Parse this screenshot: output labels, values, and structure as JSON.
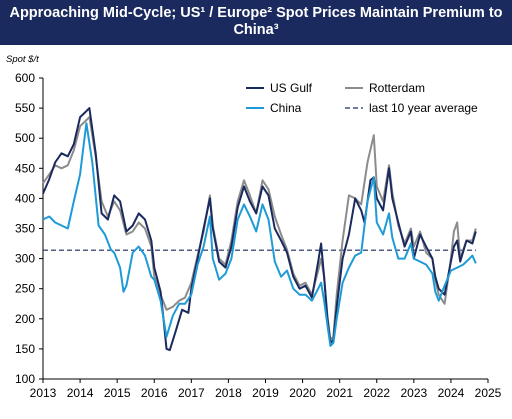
{
  "title_line1": "Approaching Mid-Cycle; US¹ / Europe² Spot Prices Maintain Premium to",
  "title_line2": "China³",
  "chart_data": {
    "type": "line",
    "title": "Approaching Mid-Cycle; US¹ / Europe² Spot Prices Maintain Premium to China³",
    "ylabel": "Spot $/t",
    "xlabel": "",
    "ylim": [
      100,
      600
    ],
    "xlim": [
      2013,
      2025
    ],
    "y_ticks": [
      100,
      150,
      200,
      250,
      300,
      350,
      400,
      450,
      500,
      550,
      600
    ],
    "x_ticks": [
      2013,
      2014,
      2015,
      2016,
      2017,
      2018,
      2019,
      2020,
      2021,
      2022,
      2023,
      2024,
      2025
    ],
    "grid": false,
    "legend": "top-right",
    "reference_line": {
      "name": "last 10 year average",
      "value": 314,
      "style": "dashed",
      "color": "#1b2a5e"
    },
    "series": [
      {
        "name": "US Gulf",
        "color": "#1b2a5e",
        "points": [
          [
            2013.0,
            408
          ],
          [
            2013.17,
            432
          ],
          [
            2013.33,
            460
          ],
          [
            2013.5,
            475
          ],
          [
            2013.67,
            470
          ],
          [
            2013.83,
            490
          ],
          [
            2014.0,
            535
          ],
          [
            2014.17,
            545
          ],
          [
            2014.25,
            550
          ],
          [
            2014.42,
            475
          ],
          [
            2014.58,
            375
          ],
          [
            2014.75,
            365
          ],
          [
            2014.92,
            405
          ],
          [
            2015.08,
            395
          ],
          [
            2015.25,
            345
          ],
          [
            2015.42,
            355
          ],
          [
            2015.58,
            375
          ],
          [
            2015.75,
            365
          ],
          [
            2015.92,
            330
          ],
          [
            2016.0,
            285
          ],
          [
            2016.17,
            245
          ],
          [
            2016.25,
            200
          ],
          [
            2016.33,
            150
          ],
          [
            2016.42,
            148
          ],
          [
            2016.58,
            180
          ],
          [
            2016.75,
            215
          ],
          [
            2016.92,
            210
          ],
          [
            2017.0,
            250
          ],
          [
            2017.17,
            300
          ],
          [
            2017.33,
            350
          ],
          [
            2017.5,
            400
          ],
          [
            2017.58,
            350
          ],
          [
            2017.75,
            295
          ],
          [
            2017.92,
            285
          ],
          [
            2018.08,
            320
          ],
          [
            2018.25,
            385
          ],
          [
            2018.42,
            420
          ],
          [
            2018.58,
            395
          ],
          [
            2018.75,
            375
          ],
          [
            2018.92,
            420
          ],
          [
            2019.08,
            405
          ],
          [
            2019.25,
            350
          ],
          [
            2019.42,
            330
          ],
          [
            2019.58,
            310
          ],
          [
            2019.75,
            270
          ],
          [
            2019.92,
            250
          ],
          [
            2020.08,
            255
          ],
          [
            2020.25,
            235
          ],
          [
            2020.42,
            295
          ],
          [
            2020.5,
            325
          ],
          [
            2020.58,
            270
          ],
          [
            2020.67,
            200
          ],
          [
            2020.75,
            160
          ],
          [
            2020.83,
            165
          ],
          [
            2020.92,
            220
          ],
          [
            2021.08,
            300
          ],
          [
            2021.25,
            340
          ],
          [
            2021.42,
            400
          ],
          [
            2021.58,
            380
          ],
          [
            2021.67,
            360
          ],
          [
            2021.75,
            395
          ],
          [
            2021.83,
            430
          ],
          [
            2021.92,
            435
          ],
          [
            2022.0,
            400
          ],
          [
            2022.17,
            380
          ],
          [
            2022.33,
            450
          ],
          [
            2022.42,
            400
          ],
          [
            2022.58,
            360
          ],
          [
            2022.75,
            320
          ],
          [
            2022.92,
            345
          ],
          [
            2023.0,
            300
          ],
          [
            2023.17,
            340
          ],
          [
            2023.33,
            320
          ],
          [
            2023.5,
            300
          ],
          [
            2023.58,
            270
          ],
          [
            2023.67,
            250
          ],
          [
            2023.83,
            240
          ],
          [
            2024.0,
            295
          ],
          [
            2024.08,
            320
          ],
          [
            2024.17,
            330
          ],
          [
            2024.25,
            295
          ],
          [
            2024.42,
            330
          ],
          [
            2024.58,
            325
          ],
          [
            2024.67,
            345
          ]
        ]
      },
      {
        "name": "Rotterdam",
        "color": "#8c8c8c",
        "points": [
          [
            2013.0,
            425
          ],
          [
            2013.17,
            440
          ],
          [
            2013.33,
            455
          ],
          [
            2013.5,
            450
          ],
          [
            2013.67,
            455
          ],
          [
            2013.83,
            480
          ],
          [
            2014.0,
            520
          ],
          [
            2014.17,
            530
          ],
          [
            2014.25,
            535
          ],
          [
            2014.42,
            470
          ],
          [
            2014.58,
            395
          ],
          [
            2014.75,
            370
          ],
          [
            2014.92,
            395
          ],
          [
            2015.08,
            380
          ],
          [
            2015.25,
            340
          ],
          [
            2015.42,
            345
          ],
          [
            2015.58,
            360
          ],
          [
            2015.75,
            350
          ],
          [
            2015.92,
            320
          ],
          [
            2016.0,
            270
          ],
          [
            2016.17,
            240
          ],
          [
            2016.33,
            215
          ],
          [
            2016.5,
            220
          ],
          [
            2016.67,
            230
          ],
          [
            2016.83,
            235
          ],
          [
            2017.0,
            260
          ],
          [
            2017.17,
            305
          ],
          [
            2017.33,
            345
          ],
          [
            2017.5,
            405
          ],
          [
            2017.58,
            355
          ],
          [
            2017.75,
            300
          ],
          [
            2017.92,
            290
          ],
          [
            2018.08,
            330
          ],
          [
            2018.25,
            395
          ],
          [
            2018.42,
            430
          ],
          [
            2018.58,
            405
          ],
          [
            2018.75,
            375
          ],
          [
            2018.92,
            430
          ],
          [
            2019.08,
            415
          ],
          [
            2019.25,
            370
          ],
          [
            2019.42,
            340
          ],
          [
            2019.58,
            315
          ],
          [
            2019.75,
            275
          ],
          [
            2019.92,
            255
          ],
          [
            2020.08,
            260
          ],
          [
            2020.25,
            240
          ],
          [
            2020.42,
            280
          ],
          [
            2020.5,
            300
          ],
          [
            2020.58,
            270
          ],
          [
            2020.67,
            205
          ],
          [
            2020.75,
            165
          ],
          [
            2020.83,
            170
          ],
          [
            2020.92,
            240
          ],
          [
            2021.08,
            330
          ],
          [
            2021.25,
            405
          ],
          [
            2021.42,
            400
          ],
          [
            2021.58,
            390
          ],
          [
            2021.75,
            460
          ],
          [
            2021.92,
            505
          ],
          [
            2022.0,
            420
          ],
          [
            2022.17,
            395
          ],
          [
            2022.33,
            455
          ],
          [
            2022.42,
            410
          ],
          [
            2022.58,
            355
          ],
          [
            2022.75,
            325
          ],
          [
            2022.92,
            350
          ],
          [
            2023.0,
            320
          ],
          [
            2023.17,
            345
          ],
          [
            2023.33,
            310
          ],
          [
            2023.5,
            300
          ],
          [
            2023.58,
            265
          ],
          [
            2023.67,
            240
          ],
          [
            2023.83,
            225
          ],
          [
            2024.0,
            300
          ],
          [
            2024.08,
            345
          ],
          [
            2024.17,
            360
          ],
          [
            2024.25,
            300
          ],
          [
            2024.42,
            330
          ],
          [
            2024.58,
            330
          ],
          [
            2024.67,
            350
          ]
        ]
      },
      {
        "name": "China",
        "color": "#1e9bd7",
        "points": [
          [
            2013.0,
            365
          ],
          [
            2013.17,
            370
          ],
          [
            2013.33,
            360
          ],
          [
            2013.5,
            355
          ],
          [
            2013.67,
            350
          ],
          [
            2013.83,
            395
          ],
          [
            2014.0,
            440
          ],
          [
            2014.08,
            480
          ],
          [
            2014.17,
            525
          ],
          [
            2014.33,
            460
          ],
          [
            2014.5,
            355
          ],
          [
            2014.67,
            340
          ],
          [
            2014.83,
            315
          ],
          [
            2014.92,
            310
          ],
          [
            2015.08,
            285
          ],
          [
            2015.17,
            245
          ],
          [
            2015.25,
            255
          ],
          [
            2015.42,
            310
          ],
          [
            2015.58,
            320
          ],
          [
            2015.75,
            305
          ],
          [
            2015.92,
            270
          ],
          [
            2016.0,
            265
          ],
          [
            2016.17,
            230
          ],
          [
            2016.25,
            200
          ],
          [
            2016.33,
            170
          ],
          [
            2016.5,
            205
          ],
          [
            2016.67,
            225
          ],
          [
            2016.83,
            225
          ],
          [
            2017.0,
            240
          ],
          [
            2017.17,
            290
          ],
          [
            2017.33,
            320
          ],
          [
            2017.5,
            370
          ],
          [
            2017.58,
            300
          ],
          [
            2017.75,
            265
          ],
          [
            2017.92,
            275
          ],
          [
            2018.08,
            300
          ],
          [
            2018.25,
            365
          ],
          [
            2018.42,
            390
          ],
          [
            2018.58,
            370
          ],
          [
            2018.75,
            345
          ],
          [
            2018.92,
            390
          ],
          [
            2019.08,
            365
          ],
          [
            2019.25,
            295
          ],
          [
            2019.42,
            270
          ],
          [
            2019.58,
            280
          ],
          [
            2019.75,
            250
          ],
          [
            2019.92,
            240
          ],
          [
            2020.08,
            240
          ],
          [
            2020.25,
            230
          ],
          [
            2020.42,
            250
          ],
          [
            2020.5,
            260
          ],
          [
            2020.58,
            230
          ],
          [
            2020.67,
            190
          ],
          [
            2020.75,
            155
          ],
          [
            2020.83,
            160
          ],
          [
            2020.92,
            200
          ],
          [
            2021.08,
            260
          ],
          [
            2021.25,
            285
          ],
          [
            2021.42,
            305
          ],
          [
            2021.58,
            310
          ],
          [
            2021.75,
            395
          ],
          [
            2021.92,
            435
          ],
          [
            2022.0,
            360
          ],
          [
            2022.17,
            340
          ],
          [
            2022.33,
            375
          ],
          [
            2022.42,
            335
          ],
          [
            2022.58,
            300
          ],
          [
            2022.75,
            300
          ],
          [
            2022.92,
            325
          ],
          [
            2023.0,
            300
          ],
          [
            2023.17,
            295
          ],
          [
            2023.33,
            290
          ],
          [
            2023.5,
            275
          ],
          [
            2023.58,
            245
          ],
          [
            2023.67,
            230
          ],
          [
            2023.83,
            255
          ],
          [
            2024.0,
            280
          ],
          [
            2024.17,
            285
          ],
          [
            2024.33,
            290
          ],
          [
            2024.5,
            300
          ],
          [
            2024.58,
            305
          ],
          [
            2024.67,
            292
          ]
        ]
      }
    ]
  }
}
